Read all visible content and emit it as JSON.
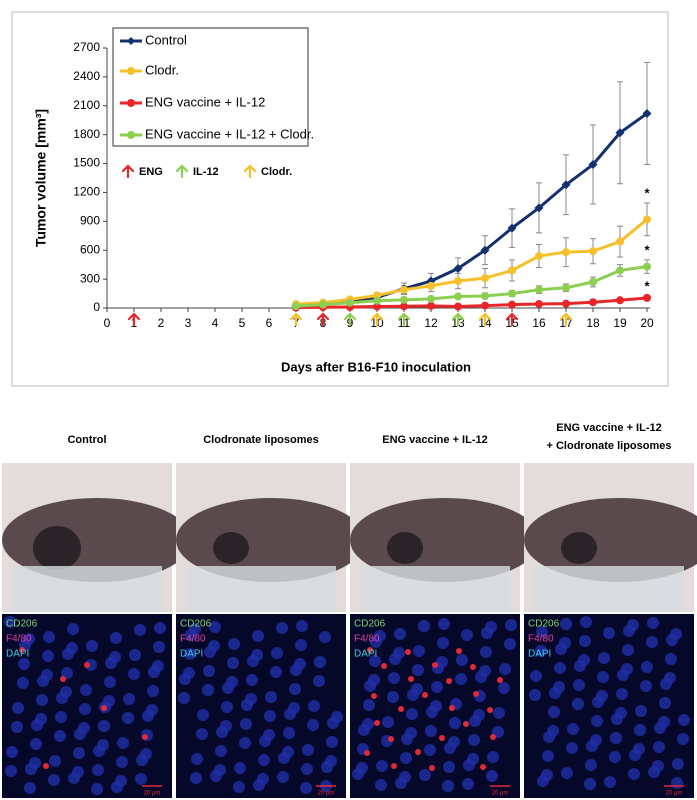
{
  "chart_data": {
    "type": "line",
    "y_label": "Tumor volume [mm³]",
    "x_label": "Days after B16-F10 inoculation",
    "x": [
      7,
      8,
      9,
      10,
      11,
      12,
      13,
      14,
      15,
      16,
      17,
      18,
      19,
      20
    ],
    "series": [
      {
        "name": "Control",
        "color": "#14306e",
        "marker": "diamond",
        "values": [
          30,
          45,
          70,
          110,
          200,
          280,
          410,
          600,
          830,
          1040,
          1280,
          1490,
          1820,
          2020
        ],
        "errors": [
          10,
          10,
          15,
          25,
          60,
          80,
          110,
          150,
          200,
          260,
          310,
          410,
          530,
          530
        ]
      },
      {
        "name": "Clodr.",
        "color": "#f5c02a",
        "marker": "circle",
        "values": [
          40,
          55,
          90,
          130,
          190,
          230,
          280,
          310,
          390,
          540,
          580,
          590,
          690,
          920
        ],
        "errors": [
          15,
          15,
          20,
          30,
          40,
          60,
          80,
          100,
          110,
          120,
          150,
          130,
          160,
          170
        ]
      },
      {
        "name": "ENG vaccine + IL-12",
        "color": "#e8262a",
        "marker": "circle",
        "values": [
          5,
          8,
          10,
          15,
          18,
          22,
          15,
          25,
          35,
          42,
          45,
          60,
          80,
          105
        ],
        "errors": [
          5,
          5,
          5,
          5,
          5,
          8,
          8,
          10,
          10,
          12,
          12,
          15,
          15,
          20
        ]
      },
      {
        "name": "ENG vaccine + IL-12 + Clodr.",
        "color": "#8ccf50",
        "marker": "circle",
        "values": [
          20,
          35,
          55,
          75,
          85,
          95,
          120,
          125,
          150,
          190,
          210,
          270,
          390,
          430
        ],
        "errors": [
          5,
          8,
          10,
          12,
          15,
          20,
          25,
          30,
          30,
          40,
          40,
          50,
          60,
          70
        ]
      }
    ],
    "xlim": [
      0,
      20
    ],
    "xticks": [
      0,
      1,
      2,
      3,
      4,
      5,
      6,
      7,
      8,
      9,
      10,
      11,
      12,
      13,
      14,
      15,
      16,
      17,
      18,
      19,
      20
    ],
    "ylim": [
      0,
      2700
    ],
    "yticks": [
      0,
      300,
      600,
      900,
      1200,
      1500,
      1800,
      2100,
      2400,
      2700
    ],
    "annotations": [
      {
        "text": "*",
        "series": 1,
        "x": 20
      },
      {
        "text": "*",
        "series": 3,
        "x": 20
      },
      {
        "text": "*",
        "series": 2,
        "x": 20
      }
    ],
    "treatments": [
      {
        "name": "ENG",
        "color": "#e8262a",
        "days": [
          1,
          8,
          15
        ]
      },
      {
        "name": "IL-12",
        "color": "#8ccf50",
        "days": [
          9,
          11,
          13
        ]
      },
      {
        "name": "Clodr.",
        "color": "#f5c02a",
        "days": [
          7,
          10,
          14,
          17
        ]
      }
    ]
  },
  "panels": [
    {
      "title": [
        "Control"
      ],
      "stains": [
        "CD206",
        "F4/80",
        "DAPI"
      ],
      "scale": "20 µm"
    },
    {
      "title": [
        "Clodronate liposomes"
      ],
      "stains": [
        "CD206",
        "F4/80",
        "DAPI"
      ],
      "scale": "20 µm"
    },
    {
      "title": [
        "ENG vaccine + IL-12"
      ],
      "stains": [
        "CD206",
        "F4/80",
        "DAPI"
      ],
      "scale": "20 µm"
    },
    {
      "title": [
        "ENG vaccine + IL-12",
        "+ Clodronate liposomes"
      ],
      "stains": [
        "CD206",
        "F4/80",
        "DAPI"
      ],
      "scale": "20 µm"
    }
  ]
}
